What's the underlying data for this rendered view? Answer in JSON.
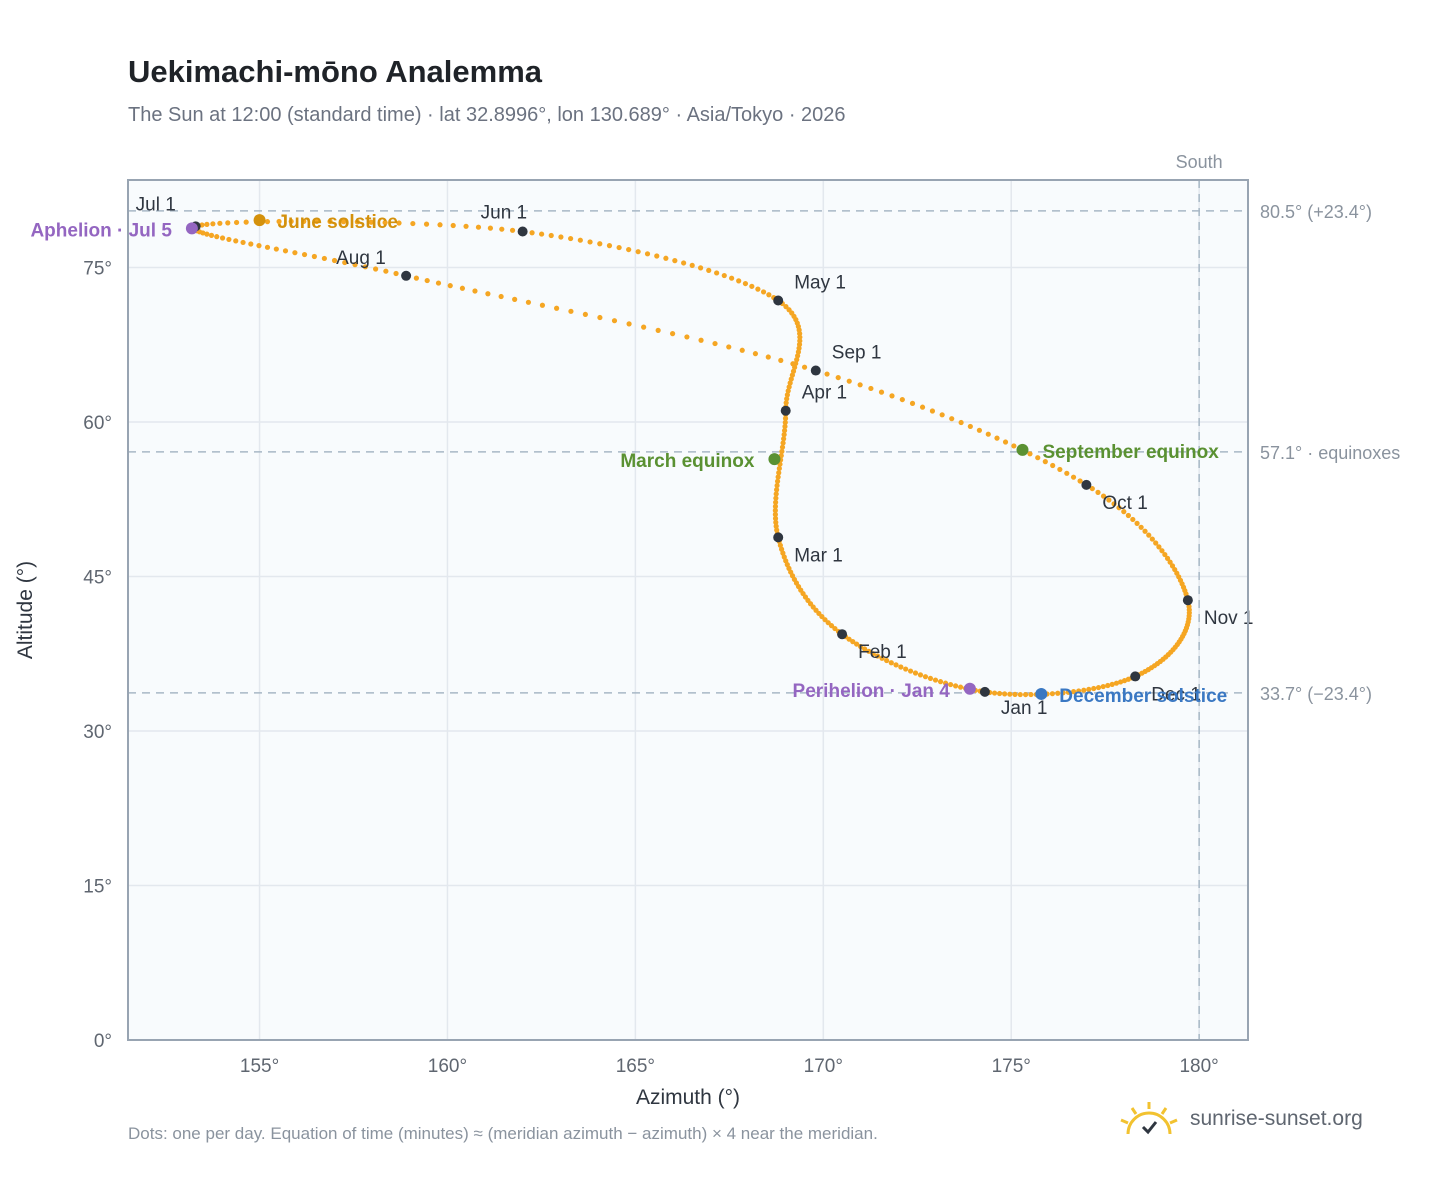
{
  "title": "Uekimachi-mōno Analemma",
  "subtitle": "The Sun at 12:00 (standard time) · lat 32.8996°, lon 130.689° · Asia/Tokyo · 2026",
  "footnote": "Dots: one per day. Equation of time (minutes) ≈ (meridian azimuth − azimuth) × 4 near the meridian.",
  "brand": {
    "name": "sunrise-sunset.org",
    "logo_icon": "sun-logo-icon"
  },
  "colors": {
    "path": "#f5a623",
    "month_marker": "#2f3640",
    "solstice_june": "#d4910c",
    "solstice_december": "#3a78c3",
    "equinox": "#5a9132",
    "apsis": "#9466c1",
    "reference_line": "#a8b8c6",
    "grid": "#e3e8ee",
    "plot_bg": "#f8fbfd",
    "frame": "#98a4b2"
  },
  "chart_data": {
    "type": "scatter",
    "xlabel": "Azimuth (°)",
    "ylabel": "Altitude (°)",
    "xlim": [
      151.5,
      181.3
    ],
    "ylim": [
      0,
      83.5
    ],
    "x_ticks": [
      155,
      160,
      165,
      170,
      175,
      180
    ],
    "y_ticks": [
      0,
      15,
      30,
      45,
      60,
      75
    ],
    "grid": true,
    "south_line": {
      "azimuth": 180,
      "label": "South"
    },
    "reference_altitudes": [
      {
        "altitude": 80.5,
        "label": "80.5° (+23.4°)"
      },
      {
        "altitude": 57.1,
        "label": "57.1° · equinoxes"
      },
      {
        "altitude": 33.7,
        "label": "33.7° (−23.4°)"
      }
    ],
    "month_points": [
      {
        "label": "Jan 1",
        "az": 174.3,
        "alt": 33.8
      },
      {
        "label": "Feb 1",
        "az": 170.5,
        "alt": 39.4
      },
      {
        "label": "Mar 1",
        "az": 168.8,
        "alt": 48.8
      },
      {
        "label": "Apr 1",
        "az": 169.0,
        "alt": 61.1
      },
      {
        "label": "May 1",
        "az": 168.8,
        "alt": 71.8
      },
      {
        "label": "Jun 1",
        "az": 162.0,
        "alt": 78.5
      },
      {
        "label": "Jul 1",
        "az": 153.3,
        "alt": 79.0
      },
      {
        "label": "Aug 1",
        "az": 158.9,
        "alt": 74.2
      },
      {
        "label": "Sep 1",
        "az": 169.8,
        "alt": 65.0
      },
      {
        "label": "Oct 1",
        "az": 177.0,
        "alt": 53.9
      },
      {
        "label": "Nov 1",
        "az": 179.7,
        "alt": 42.7
      },
      {
        "label": "Dec 1",
        "az": 178.3,
        "alt": 35.3
      }
    ],
    "events": [
      {
        "label": "June solstice",
        "az": 155.0,
        "alt": 79.6,
        "kind": "solstice_june"
      },
      {
        "label": "December solstice",
        "az": 175.8,
        "alt": 33.6,
        "kind": "solstice_december"
      },
      {
        "label": "March equinox",
        "az": 168.7,
        "alt": 56.4,
        "kind": "equinox"
      },
      {
        "label": "September equinox",
        "az": 175.3,
        "alt": 57.3,
        "kind": "equinox"
      },
      {
        "label": "Aphelion · Jul 5",
        "az": 153.2,
        "alt": 78.8,
        "kind": "apsis"
      },
      {
        "label": "Perihelion · Jan 4",
        "az": 173.9,
        "alt": 34.1,
        "kind": "apsis"
      }
    ]
  }
}
